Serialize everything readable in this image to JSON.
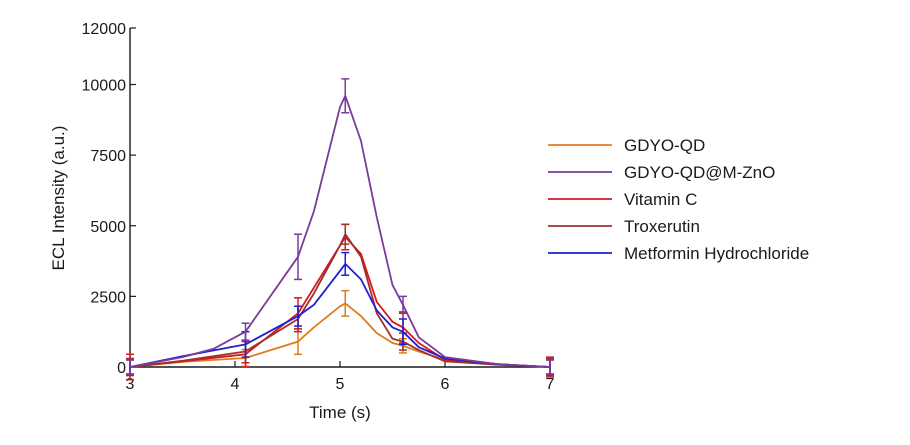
{
  "chart_data": {
    "type": "line",
    "title": "",
    "xlabel": "Time (s)",
    "ylabel": "ECL Intensity (a.u.)",
    "xlim": [
      3,
      7
    ],
    "ylim": [
      0,
      12000
    ],
    "x_ticks": [
      3,
      4,
      5,
      6,
      7
    ],
    "y_ticks": [
      0,
      2500,
      5000,
      7500,
      10000,
      12000
    ],
    "grid": false,
    "legend_position": "right",
    "series": [
      {
        "name": "GDYO-QD",
        "color": "#e07b1a",
        "x": [
          3.0,
          3.5,
          4.1,
          4.6,
          4.75,
          5.0,
          5.05,
          5.2,
          5.35,
          5.5,
          5.6,
          5.75,
          6.0,
          6.5,
          7.0
        ],
        "y": [
          0,
          180,
          320,
          900,
          1400,
          2150,
          2250,
          1800,
          1200,
          850,
          750,
          550,
          250,
          100,
          0
        ],
        "error_bars": [
          {
            "x": 3.0,
            "y": 0,
            "err": 300
          },
          {
            "x": 4.1,
            "y": 320,
            "err": 300
          },
          {
            "x": 4.6,
            "y": 900,
            "err": 450
          },
          {
            "x": 5.05,
            "y": 2250,
            "err": 450
          },
          {
            "x": 5.6,
            "y": 750,
            "err": 250
          },
          {
            "x": 7.0,
            "y": 0,
            "err": 300
          }
        ]
      },
      {
        "name": "GDYO-QD@M-ZnO",
        "color": "#7a3a9e",
        "x": [
          3.0,
          3.5,
          3.8,
          4.1,
          4.6,
          4.75,
          5.0,
          5.05,
          5.2,
          5.35,
          5.5,
          5.6,
          5.75,
          6.0,
          6.5,
          7.0
        ],
        "y": [
          0,
          350,
          650,
          1250,
          3900,
          5500,
          9200,
          9600,
          8000,
          5300,
          2900,
          2200,
          1050,
          350,
          100,
          0
        ],
        "error_bars": [
          {
            "x": 3.0,
            "y": 0,
            "err": 250
          },
          {
            "x": 4.1,
            "y": 1250,
            "err": 300
          },
          {
            "x": 4.6,
            "y": 3900,
            "err": 800
          },
          {
            "x": 5.05,
            "y": 9600,
            "err": 600
          },
          {
            "x": 5.6,
            "y": 2200,
            "err": 300
          },
          {
            "x": 7.0,
            "y": 0,
            "err": 250
          }
        ]
      },
      {
        "name": "Vitamin C",
        "color": "#d7191c",
        "x": [
          3.0,
          3.5,
          4.1,
          4.6,
          4.75,
          5.0,
          5.05,
          5.2,
          5.35,
          5.5,
          5.6,
          5.75,
          6.0,
          6.5,
          7.0
        ],
        "y": [
          0,
          200,
          450,
          1900,
          2800,
          4300,
          4600,
          4000,
          2300,
          1600,
          1400,
          850,
          250,
          100,
          0
        ],
        "error_bars": [
          {
            "x": 3.0,
            "y": 0,
            "err": 450
          },
          {
            "x": 4.1,
            "y": 450,
            "err": 450
          },
          {
            "x": 4.6,
            "y": 1900,
            "err": 550
          },
          {
            "x": 5.05,
            "y": 4600,
            "err": 450
          },
          {
            "x": 5.6,
            "y": 1400,
            "err": 550
          },
          {
            "x": 7.0,
            "y": 0,
            "err": 350
          }
        ]
      },
      {
        "name": "Troxerutin",
        "color": "#a0302e",
        "x": [
          3.0,
          3.5,
          4.1,
          4.6,
          4.75,
          5.0,
          5.05,
          5.2,
          5.35,
          5.5,
          5.6,
          5.75,
          6.0,
          6.5,
          7.0
        ],
        "y": [
          0,
          220,
          550,
          1700,
          2600,
          4300,
          4700,
          3900,
          1900,
          1000,
          900,
          600,
          200,
          80,
          0
        ],
        "error_bars": [
          {
            "x": 3.0,
            "y": 0,
            "err": 300
          },
          {
            "x": 4.1,
            "y": 550,
            "err": 400
          },
          {
            "x": 4.6,
            "y": 1700,
            "err": 450
          },
          {
            "x": 5.05,
            "y": 4700,
            "err": 350
          },
          {
            "x": 5.6,
            "y": 900,
            "err": 300
          },
          {
            "x": 7.0,
            "y": 0,
            "err": 300
          }
        ]
      },
      {
        "name": "Metformin Hydrochloride",
        "color": "#1f1fd1",
        "x": [
          3.0,
          3.5,
          4.1,
          4.6,
          4.75,
          5.0,
          5.05,
          5.2,
          5.35,
          5.5,
          5.6,
          5.75,
          6.0,
          6.5,
          7.0
        ],
        "y": [
          0,
          380,
          800,
          1800,
          2200,
          3400,
          3650,
          3100,
          2000,
          1400,
          1250,
          700,
          300,
          100,
          0
        ],
        "error_bars": [
          {
            "x": 3.0,
            "y": 0,
            "err": 250
          },
          {
            "x": 4.1,
            "y": 800,
            "err": 450
          },
          {
            "x": 4.6,
            "y": 1800,
            "err": 350
          },
          {
            "x": 5.05,
            "y": 3650,
            "err": 400
          },
          {
            "x": 5.6,
            "y": 1250,
            "err": 450
          },
          {
            "x": 7.0,
            "y": 0,
            "err": 250
          }
        ]
      }
    ]
  }
}
